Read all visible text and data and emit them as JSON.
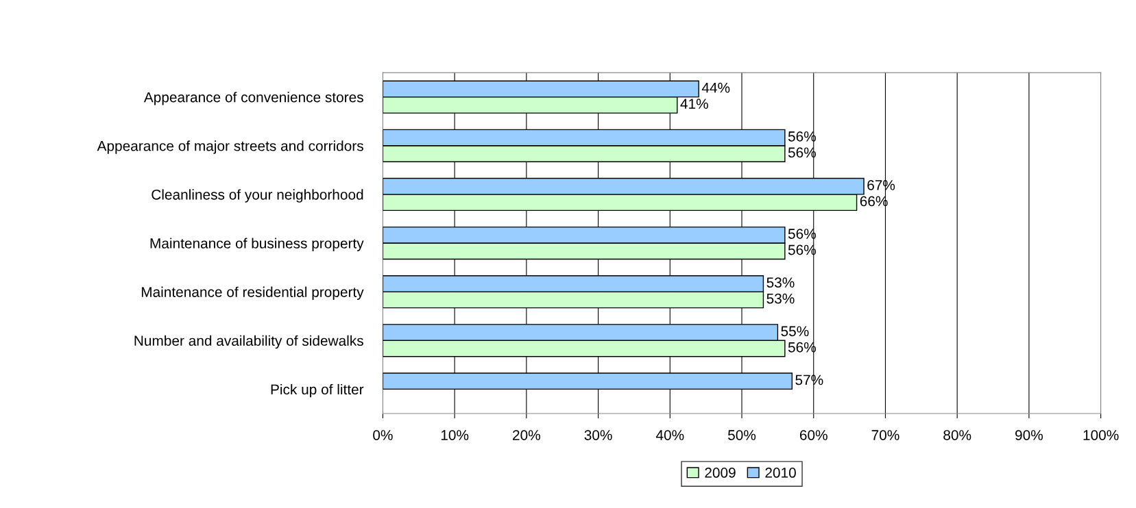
{
  "chart_data": {
    "type": "bar",
    "orientation": "horizontal",
    "categories": [
      "Appearance of convenience stores",
      "Appearance of major streets and corridors",
      "Cleanliness of your neighborhood",
      "Maintenance of business property",
      "Maintenance of residential property",
      "Number and availability of sidewalks",
      "Pick up of litter"
    ],
    "series": [
      {
        "name": "2009",
        "color": "#ccffcc",
        "values": [
          41,
          56,
          66,
          56,
          53,
          56,
          null
        ],
        "value_labels": [
          "41%",
          "56%",
          "66%",
          "56%",
          "53%",
          "56%",
          null
        ]
      },
      {
        "name": "2010",
        "color": "#99ccff",
        "values": [
          44,
          56,
          67,
          56,
          53,
          55,
          57
        ],
        "value_labels": [
          "44%",
          "56%",
          "67%",
          "56%",
          "53%",
          "55%",
          "57%"
        ]
      }
    ],
    "xlim": [
      0,
      100
    ],
    "xticks": [
      {
        "value": 0,
        "label": "0%"
      },
      {
        "value": 10,
        "label": "10%"
      },
      {
        "value": 20,
        "label": "20%"
      },
      {
        "value": 30,
        "label": "30%"
      },
      {
        "value": 40,
        "label": "40%"
      },
      {
        "value": 50,
        "label": "50%"
      },
      {
        "value": 60,
        "label": "60%"
      },
      {
        "value": 70,
        "label": "70%"
      },
      {
        "value": 80,
        "label": "80%"
      },
      {
        "value": 90,
        "label": "90%"
      },
      {
        "value": 100,
        "label": "100%"
      }
    ],
    "grid": "x",
    "legend": "bottom"
  }
}
